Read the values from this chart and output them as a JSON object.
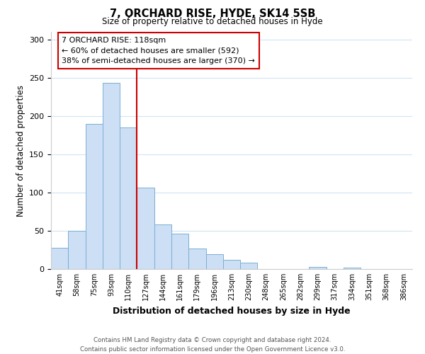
{
  "title": "7, ORCHARD RISE, HYDE, SK14 5SB",
  "subtitle": "Size of property relative to detached houses in Hyde",
  "xlabel": "Distribution of detached houses by size in Hyde",
  "ylabel": "Number of detached properties",
  "bar_labels": [
    "41sqm",
    "58sqm",
    "75sqm",
    "93sqm",
    "110sqm",
    "127sqm",
    "144sqm",
    "161sqm",
    "179sqm",
    "196sqm",
    "213sqm",
    "230sqm",
    "248sqm",
    "265sqm",
    "282sqm",
    "299sqm",
    "317sqm",
    "334sqm",
    "351sqm",
    "368sqm",
    "386sqm"
  ],
  "bar_values": [
    28,
    50,
    190,
    243,
    185,
    106,
    58,
    46,
    27,
    19,
    12,
    8,
    0,
    0,
    0,
    3,
    0,
    2,
    0,
    0,
    0
  ],
  "bar_color": "#ccdff4",
  "bar_edge_color": "#7bafd4",
  "property_line_x": 4.5,
  "property_line_color": "#cc0000",
  "ylim": [
    0,
    310
  ],
  "yticks": [
    0,
    50,
    100,
    150,
    200,
    250,
    300
  ],
  "annotation_title": "7 ORCHARD RISE: 118sqm",
  "annotation_line1": "← 60% of detached houses are smaller (592)",
  "annotation_line2": "38% of semi-detached houses are larger (370) →",
  "annotation_box_color": "#ffffff",
  "annotation_box_edge": "#cc0000",
  "footer_line1": "Contains HM Land Registry data © Crown copyright and database right 2024.",
  "footer_line2": "Contains public sector information licensed under the Open Government Licence v3.0.",
  "background_color": "#ffffff",
  "grid_color": "#d0e4f5"
}
